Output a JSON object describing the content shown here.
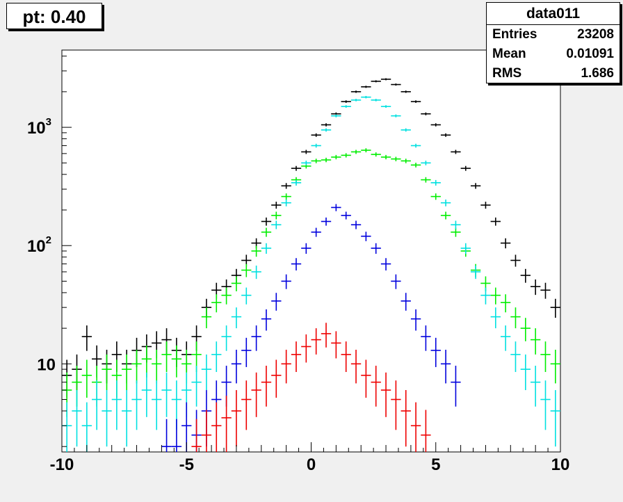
{
  "title": "pt: 0.40",
  "stats": {
    "name": "data011",
    "rows": [
      {
        "label": "Entries",
        "value": "23208"
      },
      {
        "label": "Mean",
        "value": "0.01091"
      },
      {
        "label": "RMS",
        "value": "1.686"
      }
    ]
  },
  "chart_data": {
    "type": "scatter",
    "x_range": [
      -10,
      10
    ],
    "y_range": [
      1.8,
      4500
    ],
    "y_scale": "log",
    "bin_width": 0.4,
    "x_ticks": [
      -10,
      -5,
      0,
      5,
      10
    ],
    "x_tick_labels": [
      "-10",
      "-5",
      "0",
      "5",
      "10"
    ],
    "y_major_ticks": [
      10,
      100,
      1000
    ],
    "y_tick_labels": [
      {
        "base": "10",
        "exp": ""
      },
      {
        "base": "10",
        "exp": "2"
      },
      {
        "base": "10",
        "exp": "3"
      }
    ],
    "grid": false,
    "legend": "none",
    "series": [
      {
        "color": "#000000",
        "points": [
          [
            -9.8,
            8
          ],
          [
            -9.4,
            9
          ],
          [
            -9,
            17
          ],
          [
            -8.6,
            11
          ],
          [
            -8.2,
            10
          ],
          [
            -7.8,
            12
          ],
          [
            -7.4,
            10
          ],
          [
            -7,
            13
          ],
          [
            -6.6,
            14
          ],
          [
            -6.2,
            15
          ],
          [
            -5.8,
            16
          ],
          [
            -5.4,
            13
          ],
          [
            -5,
            12
          ],
          [
            -4.6,
            17
          ],
          [
            -4.2,
            30
          ],
          [
            -3.8,
            42
          ],
          [
            -3.4,
            45
          ],
          [
            -3,
            56
          ],
          [
            -2.6,
            75
          ],
          [
            -2.2,
            105
          ],
          [
            -1.8,
            160
          ],
          [
            -1.4,
            220
          ],
          [
            -1,
            320
          ],
          [
            -0.6,
            450
          ],
          [
            -0.2,
            620
          ],
          [
            0.2,
            860
          ],
          [
            0.6,
            1050
          ],
          [
            1,
            1300
          ],
          [
            1.4,
            1650
          ],
          [
            1.8,
            2000
          ],
          [
            2.2,
            2200
          ],
          [
            2.6,
            2450
          ],
          [
            3,
            2550
          ],
          [
            3.4,
            2300
          ],
          [
            3.8,
            2000
          ],
          [
            4.2,
            1650
          ],
          [
            4.6,
            1300
          ],
          [
            5,
            1050
          ],
          [
            5.4,
            860
          ],
          [
            5.8,
            620
          ],
          [
            6.2,
            450
          ],
          [
            6.6,
            320
          ],
          [
            7,
            220
          ],
          [
            7.4,
            160
          ],
          [
            7.8,
            105
          ],
          [
            8.2,
            75
          ],
          [
            8.6,
            56
          ],
          [
            9,
            45
          ],
          [
            9.4,
            42
          ],
          [
            9.8,
            30
          ]
        ]
      },
      {
        "color": "#00ee00",
        "points": [
          [
            -9.8,
            6
          ],
          [
            -9.4,
            7
          ],
          [
            -9,
            8
          ],
          [
            -8.6,
            7
          ],
          [
            -8.2,
            9
          ],
          [
            -7.8,
            8
          ],
          [
            -7.4,
            9
          ],
          [
            -7,
            10
          ],
          [
            -6.6,
            11
          ],
          [
            -6.2,
            10
          ],
          [
            -5.8,
            12
          ],
          [
            -5.4,
            11
          ],
          [
            -5,
            10
          ],
          [
            -4.6,
            12
          ],
          [
            -4.2,
            25
          ],
          [
            -3.8,
            33
          ],
          [
            -3.4,
            38
          ],
          [
            -3,
            48
          ],
          [
            -2.6,
            62
          ],
          [
            -2.2,
            90
          ],
          [
            -1.8,
            130
          ],
          [
            -1.4,
            180
          ],
          [
            -1,
            260
          ],
          [
            -0.6,
            360
          ],
          [
            -0.2,
            470
          ],
          [
            0.2,
            520
          ],
          [
            0.6,
            530
          ],
          [
            1,
            560
          ],
          [
            1.4,
            580
          ],
          [
            1.8,
            620
          ],
          [
            2.2,
            640
          ],
          [
            2.6,
            590
          ],
          [
            3,
            560
          ],
          [
            3.4,
            540
          ],
          [
            3.8,
            520
          ],
          [
            4.2,
            480
          ],
          [
            4.6,
            360
          ],
          [
            5,
            260
          ],
          [
            5.4,
            180
          ],
          [
            5.8,
            130
          ],
          [
            6.2,
            90
          ],
          [
            6.6,
            62
          ],
          [
            7,
            48
          ],
          [
            7.4,
            38
          ],
          [
            7.8,
            33
          ],
          [
            8.2,
            25
          ],
          [
            8.6,
            20
          ],
          [
            9,
            16
          ],
          [
            9.4,
            12
          ],
          [
            9.8,
            10
          ]
        ]
      },
      {
        "color": "#00e0e0",
        "points": [
          [
            -9.8,
            3
          ],
          [
            -9.4,
            4
          ],
          [
            -9,
            3
          ],
          [
            -8.6,
            5
          ],
          [
            -8.2,
            4
          ],
          [
            -7.8,
            5
          ],
          [
            -7.4,
            4
          ],
          [
            -7,
            5
          ],
          [
            -6.6,
            6
          ],
          [
            -6.2,
            5
          ],
          [
            -5.8,
            6
          ],
          [
            -5.4,
            5
          ],
          [
            -5,
            6
          ],
          [
            -4.6,
            7
          ],
          [
            -4.2,
            9
          ],
          [
            -3.8,
            12
          ],
          [
            -3.4,
            17
          ],
          [
            -3,
            25
          ],
          [
            -2.6,
            38
          ],
          [
            -2.2,
            60
          ],
          [
            -1.8,
            95
          ],
          [
            -1.4,
            150
          ],
          [
            -1,
            230
          ],
          [
            -0.6,
            340
          ],
          [
            -0.2,
            500
          ],
          [
            0.2,
            700
          ],
          [
            0.6,
            950
          ],
          [
            1,
            1250
          ],
          [
            1.4,
            1500
          ],
          [
            1.8,
            1700
          ],
          [
            2.2,
            1800
          ],
          [
            2.6,
            1700
          ],
          [
            3,
            1500
          ],
          [
            3.4,
            1250
          ],
          [
            3.8,
            950
          ],
          [
            4.2,
            700
          ],
          [
            4.6,
            500
          ],
          [
            5,
            340
          ],
          [
            5.4,
            230
          ],
          [
            5.8,
            150
          ],
          [
            6.2,
            95
          ],
          [
            6.6,
            60
          ],
          [
            7,
            38
          ],
          [
            7.4,
            25
          ],
          [
            7.8,
            17
          ],
          [
            8.2,
            12
          ],
          [
            8.6,
            9
          ],
          [
            9,
            7
          ],
          [
            9.4,
            5
          ],
          [
            9.8,
            4
          ]
        ]
      },
      {
        "color": "#0000dd",
        "points": [
          [
            -5.8,
            2
          ],
          [
            -5.4,
            2
          ],
          [
            -5,
            3
          ],
          [
            -4.6,
            2.5
          ],
          [
            -4.2,
            4
          ],
          [
            -3.8,
            5
          ],
          [
            -3.4,
            7
          ],
          [
            -3,
            10
          ],
          [
            -2.6,
            13
          ],
          [
            -2.2,
            17
          ],
          [
            -1.8,
            24
          ],
          [
            -1.4,
            34
          ],
          [
            -1,
            50
          ],
          [
            -0.6,
            70
          ],
          [
            -0.2,
            95
          ],
          [
            0.2,
            130
          ],
          [
            0.6,
            160
          ],
          [
            1,
            210
          ],
          [
            1.4,
            180
          ],
          [
            1.8,
            150
          ],
          [
            2.2,
            120
          ],
          [
            2.6,
            95
          ],
          [
            3,
            70
          ],
          [
            3.4,
            50
          ],
          [
            3.8,
            34
          ],
          [
            4.2,
            24
          ],
          [
            4.6,
            17
          ],
          [
            5,
            13
          ],
          [
            5.4,
            10
          ],
          [
            5.8,
            7
          ]
        ]
      },
      {
        "color": "#ee0000",
        "points": [
          [
            -4.6,
            2
          ],
          [
            -4.2,
            2.5
          ],
          [
            -3.8,
            3
          ],
          [
            -3.4,
            3.5
          ],
          [
            -3,
            4
          ],
          [
            -2.6,
            5
          ],
          [
            -2.2,
            6
          ],
          [
            -1.8,
            7
          ],
          [
            -1.4,
            8
          ],
          [
            -1,
            10
          ],
          [
            -0.6,
            12
          ],
          [
            -0.2,
            14
          ],
          [
            0.2,
            16
          ],
          [
            0.6,
            18
          ],
          [
            1,
            15
          ],
          [
            1.4,
            12
          ],
          [
            1.8,
            10
          ],
          [
            2.2,
            8
          ],
          [
            2.6,
            7
          ],
          [
            3,
            6
          ],
          [
            3.4,
            5
          ],
          [
            3.8,
            4
          ],
          [
            4.2,
            3
          ],
          [
            4.6,
            2.5
          ]
        ]
      }
    ]
  }
}
